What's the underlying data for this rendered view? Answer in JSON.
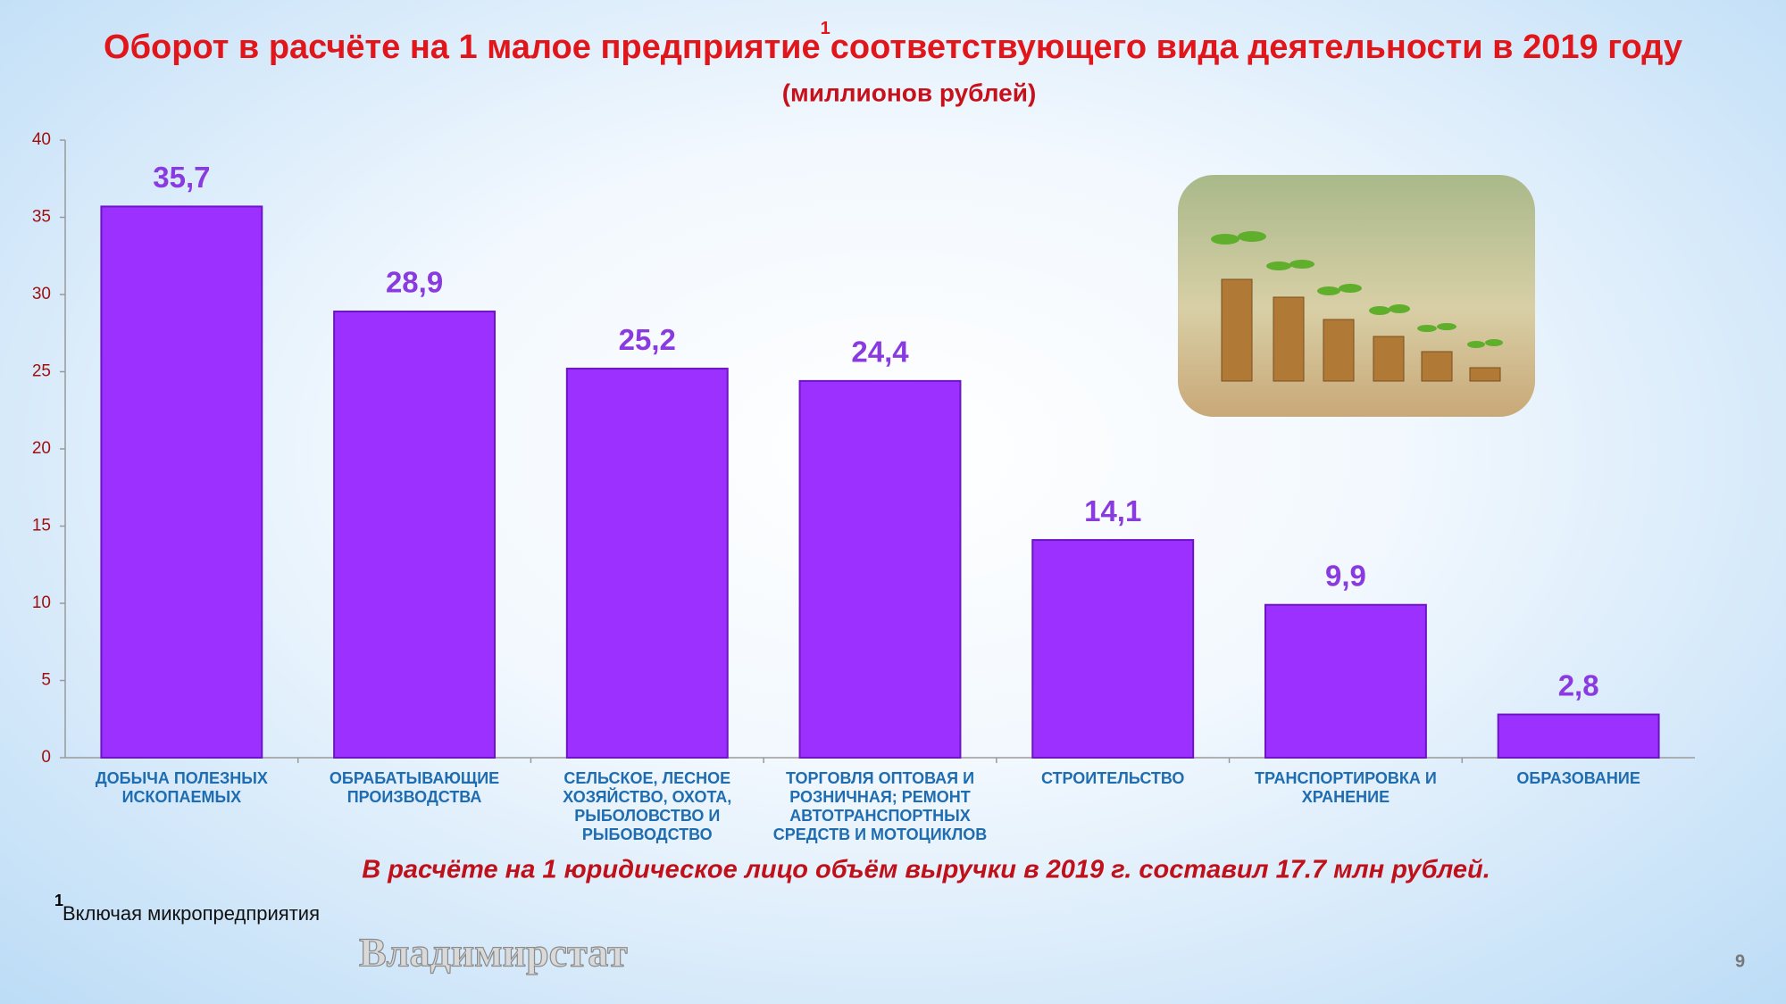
{
  "chart_data": {
    "type": "bar",
    "title": [
      "Оборот в расчёте на 1 малое предприятие",
      "соответствующего вида деятельности в 2019 году"
    ],
    "title_note_ref": "1",
    "subtitle": "(миллионов рублей)",
    "categories": [
      "ДОБЫЧА ПОЛЕЗНЫХ ИСКОПАЕМЫХ",
      "ОБРАБАТЫВАЮЩИЕ ПРОИЗВОДСТВА",
      "СЕЛЬСКОЕ, ЛЕСНОЕ ХОЗЯЙСТВО, ОХОТА, РЫБОЛОВСТВО И РЫБОВОДСТВО",
      "ТОРГОВЛЯ ОПТОВАЯ И РОЗНИЧНАЯ; РЕМОНТ АВТОТРАНСПОРТНЫХ СРЕДСТВ И МОТОЦИКЛОВ",
      "СТРОИТЕЛЬСТВО",
      "ТРАНСПОРТИРОВКА И ХРАНЕНИЕ",
      "ОБРАЗОВАНИЕ"
    ],
    "values": [
      35.7,
      28.9,
      25.2,
      24.4,
      14.1,
      9.9,
      2.8
    ],
    "value_labels": [
      "35,7",
      "28,9",
      "25,2",
      "24,4",
      "14,1",
      "9,9",
      "2,8"
    ],
    "color": "#9b30ff",
    "ylim": [
      0,
      40
    ],
    "yticks": [
      0,
      5,
      10,
      15,
      20,
      25,
      30,
      35,
      40
    ],
    "note": "В расчёте на 1 юридическое лицо объём выручки в 2019 г. составил 17.7 млн рублей.",
    "footnote": {
      "mark": "1",
      "text": "Включая микропредприятия"
    }
  },
  "watermark": "Владимирстат",
  "page_number": "9"
}
